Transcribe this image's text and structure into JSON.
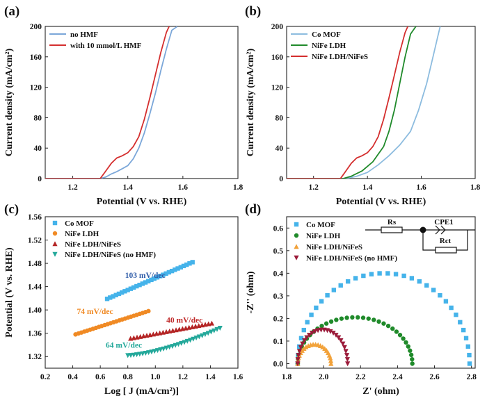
{
  "chart_data": [
    {
      "type": "line",
      "panel_label": "(a)",
      "xlabel": "Potential (V vs. RHE)",
      "ylabel": "Current density (mA/cm²)",
      "xlim": [
        1.1,
        1.8
      ],
      "ylim": [
        0,
        200
      ],
      "xticks": [
        "1.2",
        "1.4",
        "1.6",
        "1.8"
      ],
      "yticks": [
        "0",
        "40",
        "80",
        "120",
        "160",
        "200"
      ],
      "legend_position": "top-left",
      "series": [
        {
          "name": "no HMF",
          "color": "#7ba7d9",
          "x": [
            1.1,
            1.3,
            1.32,
            1.34,
            1.36,
            1.38,
            1.4,
            1.42,
            1.44,
            1.46,
            1.48,
            1.5,
            1.52,
            1.54,
            1.56,
            1.58
          ],
          "y": [
            0,
            0,
            2,
            6,
            9,
            13,
            17,
            26,
            40,
            60,
            85,
            112,
            142,
            170,
            195,
            200
          ]
        },
        {
          "name": "with 10 mmol/L HMF",
          "color": "#d42e2e",
          "x": [
            1.1,
            1.3,
            1.32,
            1.34,
            1.36,
            1.38,
            1.4,
            1.42,
            1.44,
            1.46,
            1.48,
            1.5,
            1.52,
            1.54,
            1.55
          ],
          "y": [
            0,
            0,
            10,
            20,
            27,
            30,
            34,
            42,
            55,
            78,
            106,
            136,
            166,
            192,
            200
          ]
        }
      ]
    },
    {
      "type": "line",
      "panel_label": "(b)",
      "xlabel": "Potential (V vs. RHE)",
      "ylabel": "Current density (mA/cm²)",
      "xlim": [
        1.1,
        1.8
      ],
      "ylim": [
        0,
        200
      ],
      "xticks": [
        "1.2",
        "1.4",
        "1.6",
        "1.8"
      ],
      "yticks": [
        "0",
        "40",
        "80",
        "120",
        "160",
        "200"
      ],
      "legend_position": "top-left",
      "series": [
        {
          "name": "Co MOF",
          "color": "#8dbcdf",
          "x": [
            1.1,
            1.32,
            1.36,
            1.4,
            1.44,
            1.48,
            1.52,
            1.56,
            1.59,
            1.62,
            1.64,
            1.66,
            1.67
          ],
          "y": [
            0,
            0,
            3,
            8,
            18,
            30,
            44,
            62,
            90,
            125,
            155,
            185,
            200
          ]
        },
        {
          "name": "NiFe LDH",
          "color": "#1f8a2a",
          "x": [
            1.1,
            1.31,
            1.34,
            1.38,
            1.42,
            1.46,
            1.48,
            1.5,
            1.52,
            1.54,
            1.56,
            1.58
          ],
          "y": [
            0,
            0,
            3,
            10,
            22,
            42,
            62,
            90,
            125,
            160,
            190,
            200
          ]
        },
        {
          "name": "NiFe LDH/NiFeS",
          "color": "#d42e2e",
          "x": [
            1.1,
            1.3,
            1.32,
            1.34,
            1.36,
            1.38,
            1.4,
            1.42,
            1.44,
            1.46,
            1.48,
            1.5,
            1.52,
            1.54,
            1.55
          ],
          "y": [
            0,
            0,
            10,
            20,
            27,
            30,
            34,
            42,
            55,
            78,
            106,
            136,
            166,
            192,
            200
          ]
        }
      ]
    },
    {
      "type": "scatter",
      "panel_label": "(c)",
      "xlabel": "Log [ J (mA/cm²)]",
      "ylabel": "Potential (V vs. RHE)",
      "xlim": [
        0.2,
        1.6
      ],
      "ylim": [
        1.3,
        1.56
      ],
      "xticks": [
        "0.2",
        "0.4",
        "0.6",
        "0.8",
        "1.0",
        "1.2",
        "1.4",
        "1.6"
      ],
      "yticks": [
        "1.32",
        "1.36",
        "1.40",
        "1.44",
        "1.48",
        "1.52",
        "1.56"
      ],
      "legend_position": "top-left",
      "series": [
        {
          "name": "Co MOF",
          "color": "#45b3ea",
          "marker": "square",
          "start": [
            0.65,
            1.419
          ],
          "end": [
            1.27,
            1.482
          ],
          "n": 30
        },
        {
          "name": "NiFe LDH",
          "color": "#f08a24",
          "marker": "circle",
          "start": [
            0.42,
            1.358
          ],
          "end": [
            0.95,
            1.398
          ],
          "n": 26
        },
        {
          "name": "NiFe LDH/NiFeS",
          "color": "#b42525",
          "marker": "triangle-up",
          "start": [
            0.82,
            1.351
          ],
          "end": [
            1.41,
            1.377
          ],
          "n": 26
        },
        {
          "name": "NiFe LDH/NiFeS (no HMF)",
          "color": "#23a89a",
          "marker": "triangle-down",
          "start": [
            0.8,
            1.322
          ],
          "end": [
            1.47,
            1.369
          ],
          "n": 32
        }
      ],
      "annotations": [
        {
          "text": "103 mV/dec",
          "x": 0.78,
          "y": 1.455,
          "color": "#2f5ca8"
        },
        {
          "text": "74 mV/dec",
          "x": 0.43,
          "y": 1.393,
          "color": "#f08a24"
        },
        {
          "text": "40 mV/dec",
          "x": 1.08,
          "y": 1.378,
          "color": "#c02a2a"
        },
        {
          "text": "64 mV/dec",
          "x": 0.64,
          "y": 1.335,
          "color": "#23a89a"
        }
      ]
    },
    {
      "type": "scatter",
      "panel_label": "(d)",
      "xlabel": "Z' (ohm)",
      "ylabel": "-Z'' (ohm)",
      "xlim": [
        1.8,
        2.82
      ],
      "ylim": [
        -0.02,
        0.65
      ],
      "xticks": [
        "1.8",
        "2.0",
        "2.2",
        "2.4",
        "2.6",
        "2.8"
      ],
      "yticks": [
        "0.0",
        "0.1",
        "0.2",
        "0.3",
        "0.4",
        "0.5",
        "0.6"
      ],
      "legend_position": "top-left",
      "inset_circuit_labels": [
        "Rs",
        "CPE1",
        "Rct"
      ],
      "series": [
        {
          "name": "Co MOF",
          "color": "#45b3ea",
          "marker": "square",
          "arc": [
            1.86,
            2.79,
            0.4
          ],
          "n": 34
        },
        {
          "name": "NiFe LDH",
          "color": "#1f8a2a",
          "marker": "circle",
          "arc": [
            1.86,
            2.48,
            0.205
          ],
          "n": 34
        },
        {
          "name": "NiFe LDH/NiFeS",
          "color": "#f2a23a",
          "marker": "triangle-up",
          "arc": [
            1.86,
            2.04,
            0.085
          ],
          "n": 22
        },
        {
          "name": "NiFe LDH/NiFeS (no HMF)",
          "color": "#9b1b3a",
          "marker": "triangle-down",
          "arc": [
            1.86,
            2.13,
            0.15
          ],
          "n": 26
        }
      ]
    }
  ]
}
